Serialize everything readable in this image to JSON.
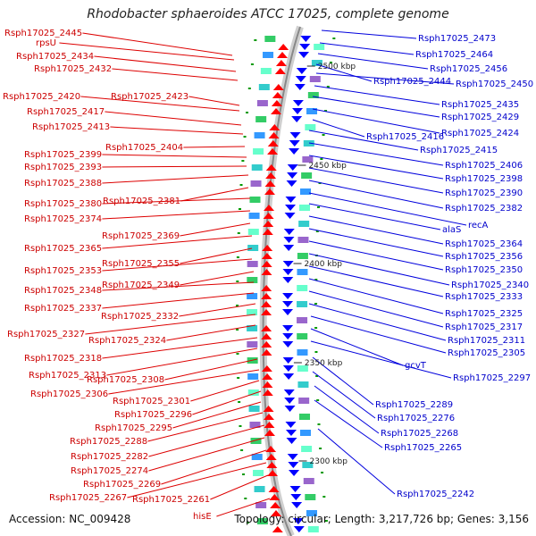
{
  "title": "Rhodobacter sphaeroides ATCC 17025, complete genome",
  "accession": "Accession: NC_009428",
  "topology": "Topology: circular; Length: 3,217,726 bp; Genes: 3,156",
  "colors": {
    "forward": "#ff0000",
    "reverse": "#0000ff",
    "backbone": "#999999"
  },
  "scale_marks": [
    "2500 kbp",
    "2450 kbp",
    "2400 kbp",
    "2350 kbp",
    "2300 kbp"
  ],
  "left_labels": [
    "Rsph17025_2445",
    "rpsU",
    "Rsph17025_2434",
    "Rsph17025_2432",
    "Rsph17025_2423",
    "Rsph17025_2420",
    "Rsph17025_2417",
    "Rsph17025_2413",
    "Rsph17025_2404",
    "Rsph17025_2399",
    "Rsph17025_2393",
    "Rsph17025_2388",
    "Rsph17025_2381",
    "Rsph17025_2380",
    "Rsph17025_2374",
    "Rsph17025_2369",
    "Rsph17025_2365",
    "Rsph17025_2355",
    "Rsph17025_2353",
    "Rsph17025_2349",
    "Rsph17025_2348",
    "Rsph17025_2337",
    "Rsph17025_2332",
    "Rsph17025_2327",
    "Rsph17025_2324",
    "Rsph17025_2318",
    "Rsph17025_2313",
    "Rsph17025_2308",
    "Rsph17025_2306",
    "Rsph17025_2301",
    "Rsph17025_2296",
    "Rsph17025_2295",
    "Rsph17025_2288",
    "Rsph17025_2282",
    "Rsph17025_2274",
    "Rsph17025_2269",
    "Rsph17025_2267",
    "Rsph17025_2261",
    "hisE"
  ],
  "right_labels": [
    "Rsph17025_2473",
    "Rsph17025_2464",
    "Rsph17025_2456",
    "Rsph17025_2444",
    "Rsph17025_2450",
    "Rsph17025_2435",
    "Rsph17025_2429",
    "Rsph17025_2424",
    "Rsph17025_2416",
    "Rsph17025_2415",
    "Rsph17025_2406",
    "Rsph17025_2398",
    "Rsph17025_2390",
    "Rsph17025_2382",
    "recA",
    "alaS",
    "Rsph17025_2364",
    "Rsph17025_2356",
    "Rsph17025_2350",
    "Rsph17025_2340",
    "Rsph17025_2333",
    "Rsph17025_2325",
    "Rsph17025_2317",
    "Rsph17025_2311",
    "Rsph17025_2305",
    "gcvT",
    "Rsph17025_2297",
    "Rsph17025_2289",
    "Rsph17025_2276",
    "Rsph17025_2268",
    "Rsph17025_2265",
    "Rsph17025_2242"
  ]
}
